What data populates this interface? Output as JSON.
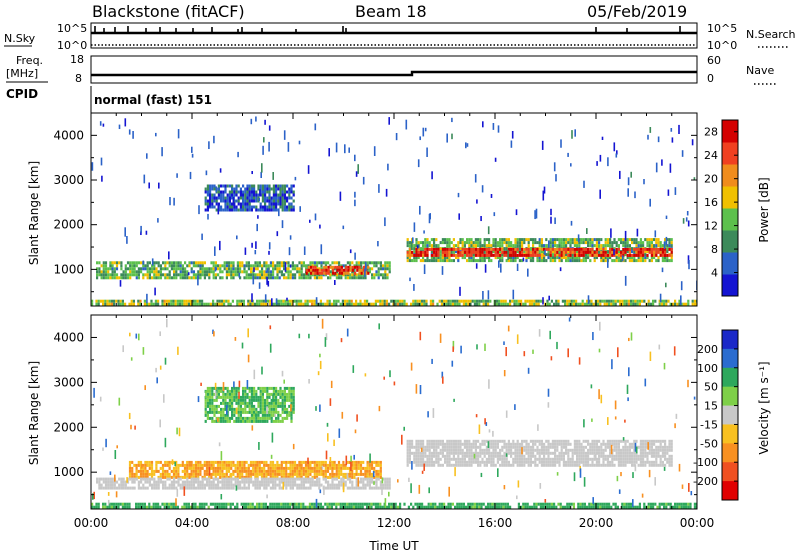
{
  "header": {
    "station": "Blackstone (fitACF)",
    "beam": "Beam 18",
    "date": "05/Feb/2019"
  },
  "strips": {
    "nsky_label": "N.Sky",
    "nsearch_label": "N.Search",
    "noise_ticks": [
      "10^5",
      "10^0"
    ],
    "freq_label": "Freq.",
    "freq_unit": "[MHz]",
    "freq_ticks": [
      "18",
      "8"
    ],
    "nave_label": "Nave",
    "nave_ticks": [
      "60",
      "0"
    ],
    "cpid_label": "CPID",
    "cpid_text": "normal (fast) 151"
  },
  "chart_data": [
    {
      "type": "heatmap",
      "panel": "power",
      "ylabel": "Slant Range [km]",
      "yticks": [
        1000,
        2000,
        3000,
        4000
      ],
      "ylim": [
        180,
        4500
      ],
      "xlim": [
        0,
        24
      ],
      "colorbar": {
        "label": "Power [dB]",
        "ticks": [
          4,
          8,
          12,
          16,
          20,
          24,
          28
        ],
        "range": [
          0,
          30
        ],
        "colors": [
          "#1414d2",
          "#2b62c8",
          "#3c8a5a",
          "#5cc04c",
          "#f0c000",
          "#f08c1c",
          "#f04020",
          "#d40000"
        ]
      },
      "regions": [
        {
          "x": [
            0.2,
            11.8
          ],
          "y": [
            780,
            1180
          ],
          "value": 12
        },
        {
          "x": [
            8.5,
            11.0
          ],
          "y": [
            880,
            1080
          ],
          "value": 24
        },
        {
          "x": [
            12.5,
            23.0
          ],
          "y": [
            1200,
            1700
          ],
          "value": 12
        },
        {
          "x": [
            12.5,
            23.0
          ],
          "y": [
            1320,
            1480
          ],
          "value": 26
        },
        {
          "x": [
            4.5,
            8.0
          ],
          "y": [
            2300,
            2900
          ],
          "value": 6
        },
        {
          "x": [
            0,
            24
          ],
          "y": [
            180,
            320
          ],
          "value": 14
        }
      ]
    },
    {
      "type": "heatmap",
      "panel": "velocity",
      "ylabel": "Slant Range [km]",
      "yticks": [
        1000,
        2000,
        3000,
        4000
      ],
      "ylim": [
        180,
        4500
      ],
      "xlim": [
        0,
        24
      ],
      "xticks": [
        "00:00",
        "04:00",
        "08:00",
        "12:00",
        "16:00",
        "20:00",
        "00:00"
      ],
      "xlabel": "Time UT",
      "colorbar": {
        "label": "Velocity [m s⁻¹]",
        "ticks": [
          "200",
          "100",
          "50",
          "15",
          "-15",
          "-50",
          "-100",
          "-200"
        ],
        "colors": [
          "#1a28c8",
          "#2a6cd0",
          "#2ea85c",
          "#7ed048",
          "#c8c8c8",
          "#f8c020",
          "#f89020",
          "#f05020",
          "#e00000"
        ]
      },
      "regions": [
        {
          "x": [
            1.5,
            11.5
          ],
          "y": [
            880,
            1250
          ],
          "value": -50
        },
        {
          "x": [
            0.2,
            11.8
          ],
          "y": [
            650,
            880
          ],
          "value": 0
        },
        {
          "x": [
            12.5,
            23.0
          ],
          "y": [
            1180,
            1720
          ],
          "value": 0
        },
        {
          "x": [
            4.5,
            8.0
          ],
          "y": [
            2100,
            2900
          ],
          "value": 50
        },
        {
          "x": [
            0,
            24
          ],
          "y": [
            180,
            320
          ],
          "value": 60
        }
      ]
    }
  ]
}
